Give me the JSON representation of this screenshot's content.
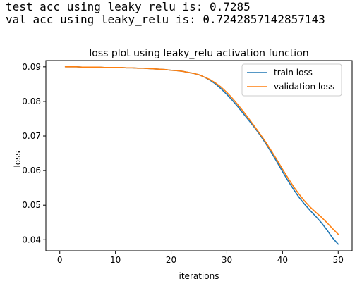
{
  "output": {
    "line1": "test acc using leaky_relu is: 0.7285",
    "line2": "val acc using leaky_relu is: 0.7242857142857143"
  },
  "chart_data": {
    "type": "line",
    "title": "loss plot using leaky_relu activation function",
    "xlabel": "iterations",
    "ylabel": "loss",
    "xlim": [
      -2.5,
      52.5
    ],
    "ylim": [
      0.0368,
      0.0918
    ],
    "xticks": [
      0,
      10,
      20,
      30,
      40,
      50
    ],
    "yticks": [
      0.04,
      0.05,
      0.06,
      0.07,
      0.08,
      0.09
    ],
    "ytick_labels": [
      "0.04",
      "0.05",
      "0.06",
      "0.07",
      "0.08",
      "0.09"
    ],
    "grid": false,
    "legend_position": "upper right",
    "x": [
      1,
      2,
      3,
      4,
      5,
      6,
      7,
      8,
      9,
      10,
      11,
      12,
      13,
      14,
      15,
      16,
      17,
      18,
      19,
      20,
      21,
      22,
      23,
      24,
      25,
      26,
      27,
      28,
      29,
      30,
      31,
      32,
      33,
      34,
      35,
      36,
      37,
      38,
      39,
      40,
      41,
      42,
      43,
      44,
      45,
      46,
      47,
      48,
      49,
      50
    ],
    "series": [
      {
        "name": "train loss",
        "color": "#1f77b4",
        "values": [
          0.09,
          0.09,
          0.09,
          0.0899,
          0.0899,
          0.0899,
          0.0899,
          0.0898,
          0.0898,
          0.0898,
          0.0898,
          0.0897,
          0.0897,
          0.0896,
          0.0896,
          0.0895,
          0.0894,
          0.0893,
          0.0892,
          0.089,
          0.0889,
          0.0887,
          0.0884,
          0.0881,
          0.0877,
          0.087,
          0.0861,
          0.085,
          0.0836,
          0.082,
          0.0803,
          0.0784,
          0.0764,
          0.0744,
          0.0724,
          0.0702,
          0.0678,
          0.0652,
          0.0625,
          0.0597,
          0.057,
          0.0545,
          0.0522,
          0.0502,
          0.0484,
          0.0467,
          0.0449,
          0.0428,
          0.0405,
          0.0387
        ]
      },
      {
        "name": "validation loss",
        "color": "#ff7f0e",
        "values": [
          0.09,
          0.09,
          0.09,
          0.0899,
          0.0899,
          0.0899,
          0.0899,
          0.0898,
          0.0898,
          0.0898,
          0.0898,
          0.0897,
          0.0897,
          0.0896,
          0.0896,
          0.0895,
          0.0894,
          0.0893,
          0.0892,
          0.089,
          0.0889,
          0.0887,
          0.0884,
          0.0881,
          0.0877,
          0.087,
          0.0863,
          0.0853,
          0.0841,
          0.0826,
          0.0809,
          0.079,
          0.077,
          0.0749,
          0.0727,
          0.0705,
          0.0682,
          0.0657,
          0.0631,
          0.0604,
          0.0578,
          0.0553,
          0.0531,
          0.0511,
          0.0494,
          0.0479,
          0.0465,
          0.0449,
          0.0432,
          0.0416
        ]
      }
    ]
  }
}
